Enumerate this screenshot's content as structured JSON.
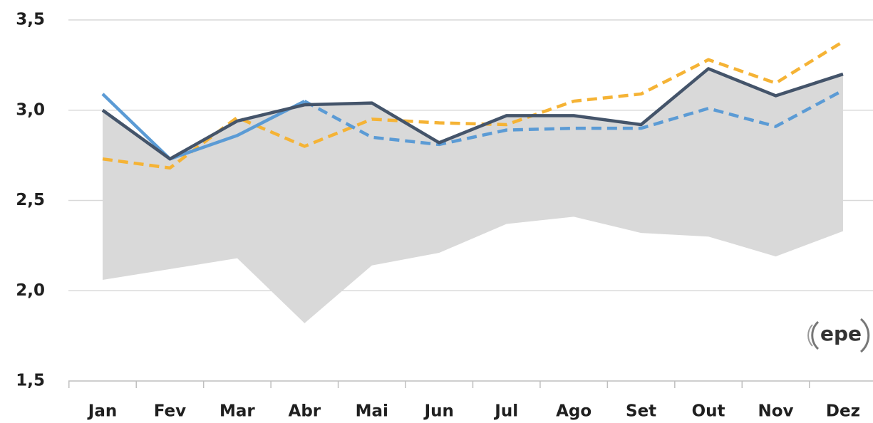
{
  "chart_data": {
    "type": "line",
    "categories": [
      "Jan",
      "Fev",
      "Mar",
      "Abr",
      "Mai",
      "Jun",
      "Jul",
      "Ago",
      "Set",
      "Out",
      "Nov",
      "Dez"
    ],
    "band": {
      "color": "#d9d9d9",
      "upper": [
        3.0,
        2.73,
        2.94,
        3.03,
        3.04,
        2.82,
        2.97,
        2.97,
        2.92,
        3.23,
        3.08,
        3.2
      ],
      "lower": [
        2.06,
        2.12,
        2.18,
        1.82,
        2.14,
        2.21,
        2.37,
        2.41,
        2.32,
        2.3,
        2.19,
        2.33
      ]
    },
    "series": [
      {
        "color": "#44546a",
        "dash": false,
        "values": [
          3.0,
          2.73,
          2.94,
          3.03,
          3.04,
          2.82,
          2.97,
          2.97,
          2.92,
          3.23,
          3.08,
          3.2
        ]
      },
      {
        "color": "#5b9bd5",
        "dash": false,
        "values": [
          3.09,
          2.73,
          2.86,
          3.05,
          null,
          null,
          null,
          null,
          null,
          null,
          null,
          null
        ]
      },
      {
        "color": "#5b9bd5",
        "dash": true,
        "values": [
          null,
          null,
          null,
          3.05,
          2.85,
          2.81,
          2.89,
          2.9,
          2.9,
          3.01,
          2.91,
          3.11
        ]
      },
      {
        "color": "#f5b335",
        "dash": true,
        "values": [
          2.73,
          2.68,
          2.96,
          2.8,
          2.95,
          2.93,
          2.92,
          3.05,
          3.09,
          3.28,
          3.15,
          3.38
        ]
      }
    ],
    "ylim": [
      1.5,
      3.5
    ],
    "yticks": [
      {
        "value": 1.5,
        "label": "1,5"
      },
      {
        "value": 2.0,
        "label": "2,0"
      },
      {
        "value": 2.5,
        "label": "2,5"
      },
      {
        "value": 3.0,
        "label": "3,0"
      },
      {
        "value": 3.5,
        "label": "3,5"
      }
    ],
    "grid": true,
    "logo": "epe"
  }
}
